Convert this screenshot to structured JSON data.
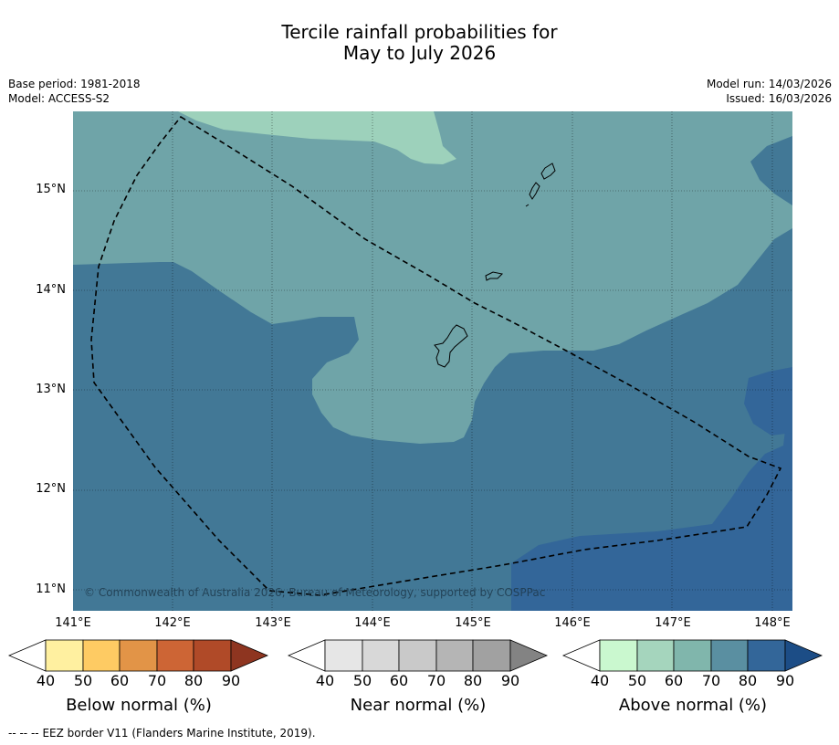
{
  "title": {
    "line1": "Tercile rainfall probabilities for",
    "line2": "May to July 2026"
  },
  "info": {
    "base_period": "Base period: 1981-2018",
    "model": "Model: ACCESS-S2",
    "model_run": "Model run: 14/03/2026",
    "issued": "Issued: 16/03/2026"
  },
  "map": {
    "copyright": "© Commonwealth of Australia 2026, Bureau of Meteorology, supported by COSPPac",
    "lat_labels": [
      "15°N",
      "14°N",
      "13°N",
      "12°N",
      "11°N"
    ],
    "lon_labels": [
      "141°E",
      "142°E",
      "143°E",
      "144°E",
      "145°E",
      "146°E",
      "147°E",
      "148°E"
    ],
    "shade_colors": {
      "above_50": "#9dd1bb",
      "above_60": "#6fa4a8",
      "above_70": "#427896",
      "above_80": "#336699"
    }
  },
  "colorbars": {
    "below": {
      "label": "Below normal (%)",
      "ticks": [
        "40",
        "50",
        "60",
        "70",
        "80",
        "90"
      ],
      "colors": [
        "#ffffff",
        "#fff0a0",
        "#fecb63",
        "#e29447",
        "#cd6535",
        "#b04a28",
        "#8e3520"
      ]
    },
    "near": {
      "label": "Near normal (%)",
      "ticks": [
        "40",
        "50",
        "60",
        "70",
        "80",
        "90"
      ],
      "colors": [
        "#ffffff",
        "#e6e6e6",
        "#d8d8d8",
        "#c9c9c9",
        "#b5b5b5",
        "#a1a1a1",
        "#838383"
      ]
    },
    "above": {
      "label": "Above normal (%)",
      "ticks": [
        "40",
        "50",
        "60",
        "70",
        "80",
        "90"
      ],
      "colors": [
        "#ffffff",
        "#caf8cf",
        "#a5d5bd",
        "#80b6ac",
        "#5a8fa1",
        "#336699",
        "#1c4d86"
      ]
    }
  },
  "legend": {
    "eez_symbol": "--  --  --",
    "eez_text": "EEZ border V11 (Flanders Marine Institute, 2019)."
  }
}
